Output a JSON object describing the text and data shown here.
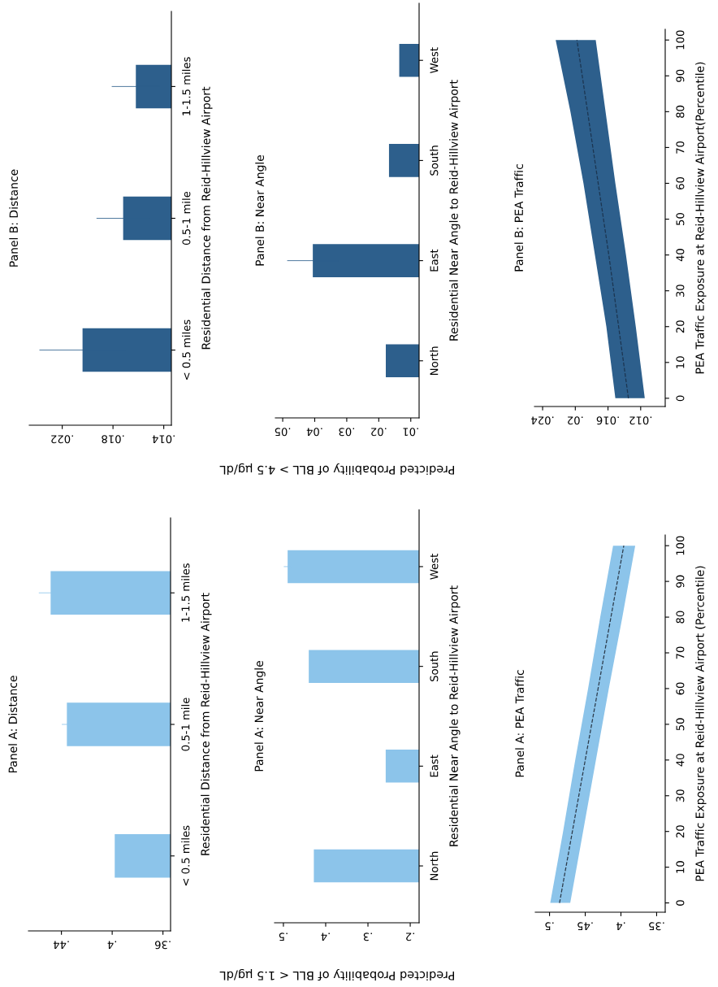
{
  "chart_data": [
    {
      "type": "bar",
      "orientation": "horizontal",
      "title": "Panel A: Distance",
      "ylabel": "Residential Distance from Reid-Hillview Airport",
      "xlabel": "Predicted Probability of BLL < 1.5 µg/dL",
      "categories": [
        "1-1.5 miles",
        "0.5-1 mile",
        "< 0.5 miles"
      ],
      "values": [
        0.4485,
        0.4357,
        0.398
      ],
      "errors": [
        0.0093,
        0.004,
        null
      ],
      "color": "#8cc4ea",
      "xlim": [
        0.466,
        0.354
      ],
      "xticks": [
        {
          "value": 0.44,
          "label": ".44"
        },
        {
          "value": 0.4,
          "label": ".4"
        },
        {
          "value": 0.36,
          "label": ".36"
        }
      ]
    },
    {
      "type": "bar",
      "orientation": "horizontal",
      "title": "Panel A: Near Angle",
      "ylabel": "Residential Near Angle to Reid-Hillview Airport",
      "categories": [
        "West",
        "South",
        "East",
        "North"
      ],
      "values": [
        0.49,
        0.44,
        0.258,
        0.428
      ],
      "errors": [
        0.009,
        null,
        null,
        null
      ],
      "color": "#8cc4ea",
      "xlim": [
        0.521,
        0.179
      ],
      "xticks": [
        {
          "value": 0.5,
          "label": ".5"
        },
        {
          "value": 0.4,
          "label": ".4"
        },
        {
          "value": 0.3,
          "label": ".3"
        },
        {
          "value": 0.2,
          "label": ".2"
        }
      ]
    },
    {
      "type": "line",
      "orientation": "horizontal",
      "title": "Panel A: PEA Traffic",
      "ylabel": "PEA Traffic Exposure at Reid-Hillview Airport (Percentile)",
      "color": "#8cc4ea",
      "line_style": "dashed",
      "x": [
        0,
        20,
        40,
        60,
        80,
        100
      ],
      "series": [
        {
          "color": "#2b3a4a",
          "values": [
            0.486,
            0.468,
            0.45,
            0.432,
            0.414,
            0.396
          ],
          "lower": [
            0.471,
            0.453,
            0.435,
            0.417,
            0.398,
            0.38
          ],
          "upper": [
            0.499,
            0.481,
            0.464,
            0.446,
            0.429,
            0.411
          ]
        }
      ],
      "xlim": [
        0.52,
        0.338
      ],
      "xticks": [
        {
          "value": 0.5,
          "label": ".5"
        },
        {
          "value": 0.45,
          "label": ".45"
        },
        {
          "value": 0.4,
          "label": ".4"
        },
        {
          "value": 0.35,
          "label": ".35"
        }
      ],
      "ylim": [
        -2.6,
        103
      ],
      "yticks": [
        0,
        10,
        20,
        30,
        40,
        50,
        60,
        70,
        80,
        90,
        100
      ]
    },
    {
      "type": "bar",
      "orientation": "horizontal",
      "title": "Panel B: Distance",
      "ylabel": "Residential Distance from Reid-Hillview Airport",
      "xlabel": "Predicted Probability of BLL > 4.5 µg/dL",
      "categories": [
        "1-1.5 miles",
        "0.5-1 mile",
        "< 0.5 miles"
      ],
      "values": [
        0.0162,
        0.0172,
        0.0204
      ],
      "errors": [
        0.0019,
        0.0021,
        0.0034
      ],
      "color": "#2d5f8c",
      "xlim": [
        0.0246,
        0.0134
      ],
      "xticks": [
        {
          "value": 0.022,
          "label": ".022"
        },
        {
          "value": 0.018,
          "label": ".018"
        },
        {
          "value": 0.014,
          "label": ".014"
        }
      ]
    },
    {
      "type": "bar",
      "orientation": "horizontal",
      "title": "Panel B: Near Angle",
      "ylabel": "Residential Near Angle to Reid-Hillview Airport",
      "categories": [
        "West",
        "South",
        "East",
        "North"
      ],
      "values": [
        0.0136,
        0.0168,
        0.0406,
        0.0178
      ],
      "errors": [
        null,
        null,
        0.008,
        null
      ],
      "color": "#2d5f8c",
      "xlim": [
        0.0523,
        0.0074
      ],
      "xticks": [
        {
          "value": 0.05,
          "label": ".05"
        },
        {
          "value": 0.04,
          "label": ".04"
        },
        {
          "value": 0.03,
          "label": ".03"
        },
        {
          "value": 0.02,
          "label": ".02"
        },
        {
          "value": 0.01,
          "label": ".01"
        }
      ]
    },
    {
      "type": "line",
      "orientation": "horizontal",
      "title": "Panel B: PEA Traffic",
      "ylabel": "PEA Traffic Exposure at Reid-Hillview Airport(Percentile)",
      "color": "#2d5f8c",
      "line_style": "dashed",
      "x": [
        0,
        20,
        40,
        60,
        80,
        100
      ],
      "series": [
        {
          "color": "#1c3550",
          "values": [
            0.0135,
            0.0147,
            0.0159,
            0.0172,
            0.0185,
            0.0198
          ],
          "lower": [
            0.0115,
            0.0126,
            0.0138,
            0.0151,
            0.0163,
            0.0175
          ],
          "upper": [
            0.0151,
            0.0162,
            0.0176,
            0.019,
            0.0206,
            0.0224
          ]
        }
      ],
      "xlim": [
        0.025,
        0.009
      ],
      "xticks": [
        {
          "value": 0.024,
          "label": ".024"
        },
        {
          "value": 0.02,
          "label": ".02"
        },
        {
          "value": 0.016,
          "label": ".016"
        },
        {
          "value": 0.012,
          "label": ".012"
        }
      ],
      "ylim": [
        -2.3,
        103
      ],
      "yticks": [
        0,
        10,
        20,
        30,
        40,
        50,
        60,
        70,
        80,
        90,
        100
      ]
    }
  ]
}
